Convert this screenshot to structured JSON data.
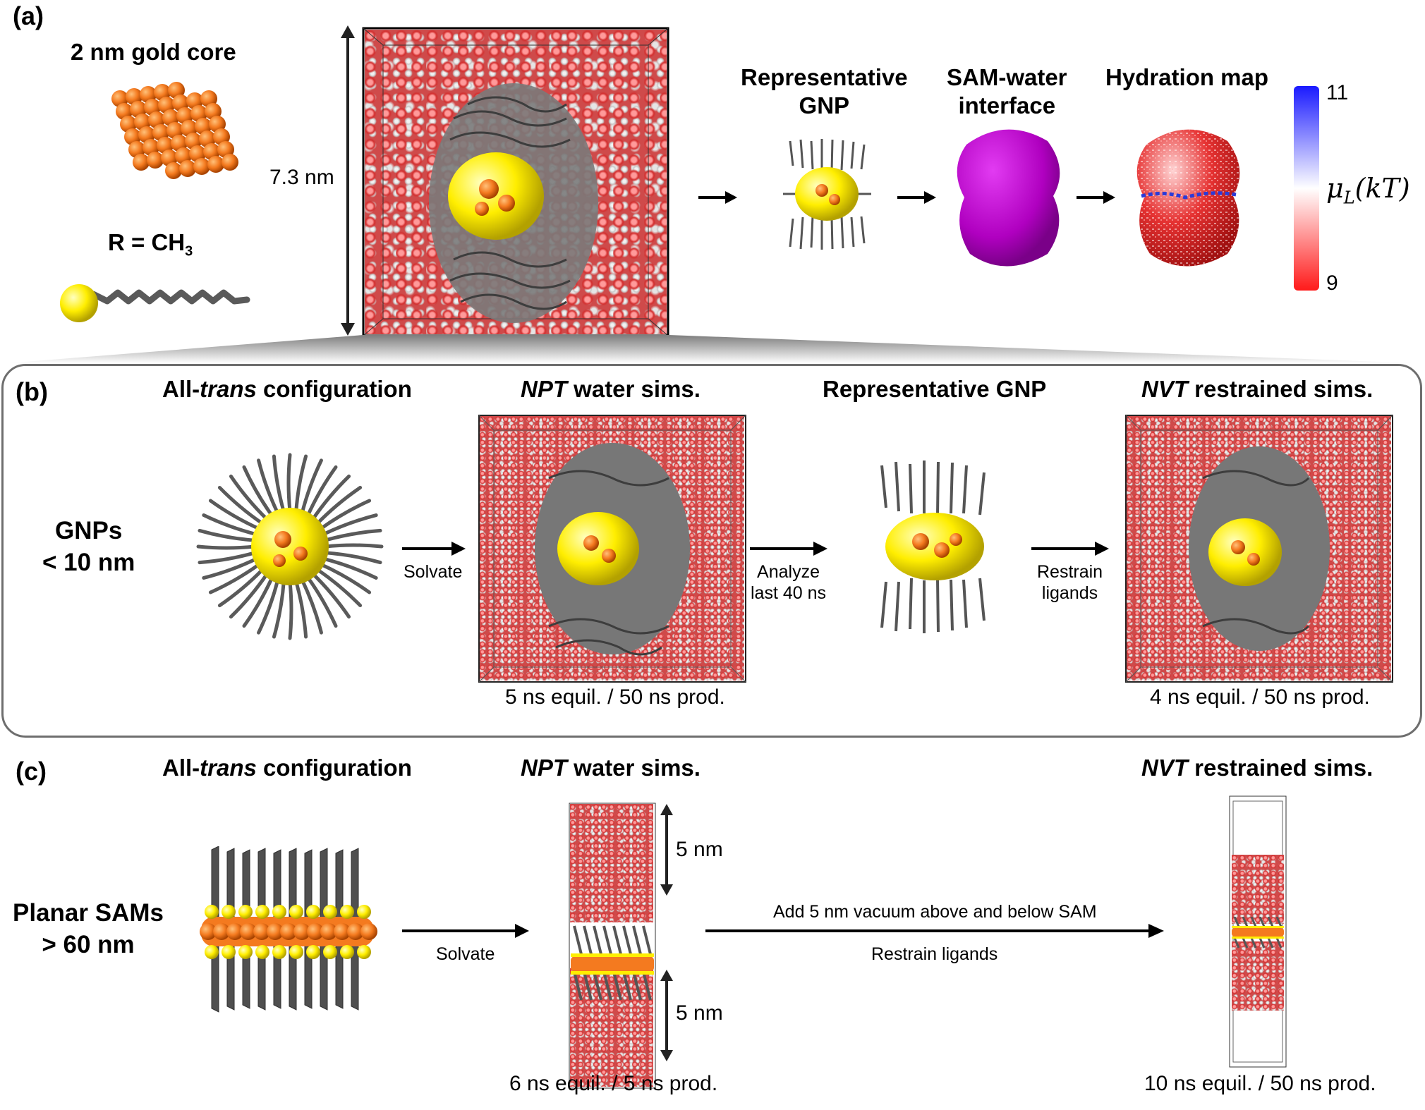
{
  "panel_a": {
    "letter": "(a)",
    "core_title": "2 nm gold core",
    "r_group": "R = CH",
    "r_group_sub": "3",
    "box_size": "7.3 nm",
    "steps": [
      "Representative GNP",
      "SAM-water interface",
      "Hydration map"
    ],
    "step_lines": [
      [
        "Representative",
        "GNP"
      ],
      [
        "SAM-water",
        "interface"
      ],
      [
        "Hydration map"
      ]
    ],
    "colorbar": {
      "max": "11",
      "min": "9",
      "label": "μ",
      "label_sub": "L",
      "label_tail": "(kT)",
      "colors": [
        "#1a1aff",
        "#ffffff",
        "#ff1a1a"
      ]
    }
  },
  "panel_b": {
    "letter": "(b)",
    "row_label": [
      "GNPs",
      "< 10 nm"
    ],
    "col1": {
      "pre": "All-",
      "ital": "trans",
      "post": " configuration"
    },
    "col2": {
      "ital": "NPT",
      "post": " water sims.",
      "caption": "5 ns equil. / 50 ns prod."
    },
    "col3": {
      "title": "Representative GNP"
    },
    "col4": {
      "ital": "NVT",
      "post": " restrained sims.",
      "caption": "4 ns equil. / 50 ns prod."
    },
    "arrow1": [
      "Solvate"
    ],
    "arrow2": [
      "Analyze",
      "last 40 ns"
    ],
    "arrow3": [
      "Restrain",
      "ligands"
    ]
  },
  "panel_c": {
    "letter": "(c)",
    "row_label": [
      "Planar SAMs",
      "> 60 nm"
    ],
    "col1": {
      "pre": "All-",
      "ital": "trans",
      "post": " configuration"
    },
    "col2": {
      "ital": "NPT",
      "post": " water sims.",
      "caption": "6 ns equil. / 5 ns prod.",
      "dim_top": "5 nm",
      "dim_bottom": "5 nm"
    },
    "col4": {
      "ital": "NVT",
      "post": " restrained sims.",
      "caption": "10 ns equil. / 50 ns prod."
    },
    "arrow1": "Solvate",
    "arrow2_top": "Add 5 nm vacuum above and below SAM",
    "arrow2_bottom": "Restrain ligands"
  },
  "colors": {
    "gold": "#f47a1f",
    "sulfur": "#ffee00",
    "carbon": "#5a5a5a",
    "purple": "#b800c8",
    "water_red": "#d32f2f",
    "water_white": "#e8e8e8"
  }
}
